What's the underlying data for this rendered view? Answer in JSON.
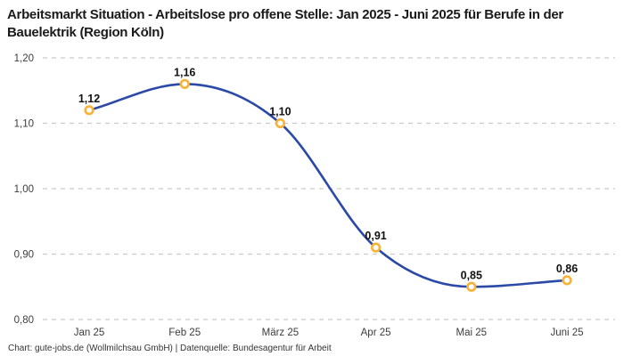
{
  "title": "Arbeitsmarkt Situation - Arbeitslose pro offene Stelle: Jan 2025 - Juni 2025 für Berufe in der Bauelektrik (Region Köln)",
  "footer": "Chart: gute-jobs.de (Wollmilchsau GmbH) | Datenquelle: Bundesagentur für Arbeit",
  "colors": {
    "line": "#2b49a7",
    "marker_stroke": "#f9b234",
    "marker_fill": "#ffffff",
    "grid": "#c9c9c9",
    "title_text": "#1a1a1a",
    "axis_text": "#3c3c3c",
    "data_label_text": "#111111"
  },
  "chart_data": {
    "type": "line",
    "title": "Arbeitsmarkt Situation - Arbeitslose pro offene Stelle: Jan 2025 - Juni 2025 für Berufe in der Bauelektrik (Region Köln)",
    "categories": [
      "Jan 25",
      "Feb 25",
      "März 25",
      "Apr 25",
      "Mai 25",
      "Juni 25"
    ],
    "values": [
      1.12,
      1.16,
      1.1,
      0.91,
      0.85,
      0.86
    ],
    "point_labels": [
      "1,12",
      "1,16",
      "1,10",
      "0,91",
      "0,85",
      "0,86"
    ],
    "xlabel": "",
    "ylabel": "",
    "ylim": [
      0.8,
      1.2
    ],
    "ytick_values": [
      1.2,
      1.1,
      1.0,
      0.9,
      0.8
    ],
    "ytick_labels": [
      "1,20",
      "1,10",
      "1,00",
      "0,90",
      "0,80"
    ],
    "grid": "horizontal-dashed",
    "legend": "none",
    "curve": "smooth-monotone",
    "source": "Bundesagentur für Arbeit"
  }
}
